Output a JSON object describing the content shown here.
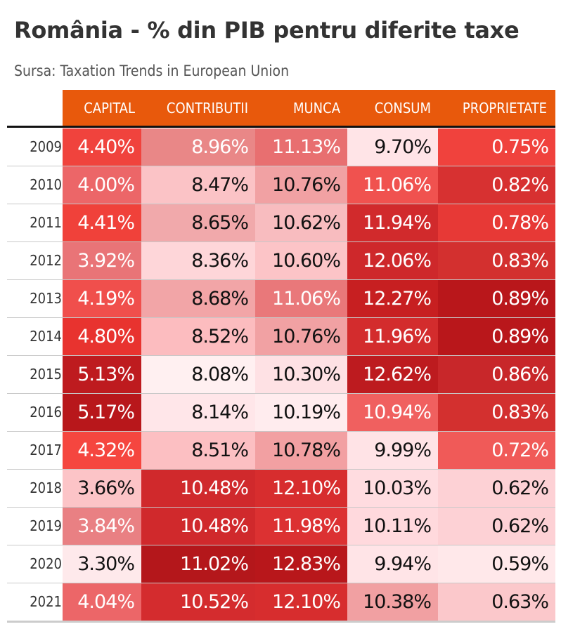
{
  "title": "România - % din PIB pentru diferite taxe",
  "subtitle": "Sursa: Taxation Trends in European Union",
  "chart_data": {
    "type": "table",
    "title": "România - % din PIB pentru diferite taxe",
    "subtitle": "Sursa: Taxation Trends in European Union",
    "columns": [
      "CAPITAL",
      "CONTRIBUTII",
      "MUNCA",
      "CONSUM",
      "PROPRIETATE"
    ],
    "rows": [
      {
        "year": "2009",
        "values": [
          "4.40%",
          "8.96%",
          "11.13%",
          "9.70%",
          "0.75%"
        ],
        "colors": [
          "#f0433d",
          "#e98787",
          "#e86f70",
          "#ffe4e7",
          "#f0423d"
        ],
        "text": [
          "#ffffff",
          "#ffffff",
          "#ffffff",
          "#111111",
          "#ffffff"
        ]
      },
      {
        "year": "2010",
        "values": [
          "4.00%",
          "8.47%",
          "10.76%",
          "11.06%",
          "0.82%"
        ],
        "colors": [
          "#ec6668",
          "#fbc3c6",
          "#f1a1a3",
          "#f0524f",
          "#d73131"
        ],
        "text": [
          "#ffffff",
          "#111111",
          "#111111",
          "#ffffff",
          "#ffffff"
        ]
      },
      {
        "year": "2011",
        "values": [
          "4.41%",
          "8.65%",
          "10.62%",
          "11.94%",
          "0.78%"
        ],
        "colors": [
          "#f0413a",
          "#f1a9ab",
          "#f8bcbf",
          "#d12a2c",
          "#e73936"
        ],
        "text": [
          "#ffffff",
          "#111111",
          "#111111",
          "#ffffff",
          "#ffffff"
        ]
      },
      {
        "year": "2012",
        "values": [
          "3.92%",
          "8.36%",
          "10.60%",
          "12.06%",
          "0.83%"
        ],
        "colors": [
          "#e97477",
          "#fed6d9",
          "#fcc4c7",
          "#ce282b",
          "#d3302f"
        ],
        "text": [
          "#ffffff",
          "#111111",
          "#111111",
          "#ffffff",
          "#ffffff"
        ]
      },
      {
        "year": "2013",
        "values": [
          "4.19%",
          "8.68%",
          "11.06%",
          "12.27%",
          "0.89%"
        ],
        "colors": [
          "#f04f4c",
          "#f2a5a7",
          "#e9787a",
          "#c71f21",
          "#b9171b"
        ],
        "text": [
          "#ffffff",
          "#111111",
          "#ffffff",
          "#ffffff",
          "#ffffff"
        ]
      },
      {
        "year": "2014",
        "values": [
          "4.80%",
          "8.52%",
          "10.76%",
          "11.96%",
          "0.89%"
        ],
        "colors": [
          "#e8332f",
          "#fcbcbf",
          "#f1a1a3",
          "#d32c2d",
          "#b9171b"
        ],
        "text": [
          "#ffffff",
          "#111111",
          "#111111",
          "#ffffff",
          "#ffffff"
        ]
      },
      {
        "year": "2015",
        "values": [
          "5.13%",
          "8.08%",
          "10.30%",
          "12.62%",
          "0.86%"
        ],
        "colors": [
          "#be1b1f",
          "#fff0f1",
          "#fee1e4",
          "#bd1b1f",
          "#c8272a"
        ],
        "text": [
          "#ffffff",
          "#111111",
          "#111111",
          "#ffffff",
          "#ffffff"
        ]
      },
      {
        "year": "2016",
        "values": [
          "5.17%",
          "8.14%",
          "10.19%",
          "10.94%",
          "0.83%"
        ],
        "colors": [
          "#b8171b",
          "#ffe6e9",
          "#ffecee",
          "#f0605f",
          "#d3302f"
        ],
        "text": [
          "#ffffff",
          "#111111",
          "#111111",
          "#ffffff",
          "#ffffff"
        ]
      },
      {
        "year": "2017",
        "values": [
          "4.32%",
          "8.51%",
          "10.78%",
          "9.99%",
          "0.72%"
        ],
        "colors": [
          "#f5463f",
          "#fcbfc2",
          "#f2a0a2",
          "#ffe3e6",
          "#f05a58"
        ],
        "text": [
          "#ffffff",
          "#111111",
          "#111111",
          "#111111",
          "#ffffff"
        ]
      },
      {
        "year": "2018",
        "values": [
          "3.66%",
          "10.48%",
          "12.10%",
          "10.03%",
          "0.62%"
        ],
        "colors": [
          "#fcc4c7",
          "#d0292c",
          "#d72d2e",
          "#ffdce0",
          "#fdd1d5"
        ],
        "text": [
          "#111111",
          "#ffffff",
          "#ffffff",
          "#111111",
          "#111111"
        ]
      },
      {
        "year": "2019",
        "values": [
          "3.84%",
          "10.48%",
          "11.98%",
          "10.11%",
          "0.62%"
        ],
        "colors": [
          "#e98083",
          "#d0292c",
          "#dc3132",
          "#ffd9dd",
          "#fdd1d5"
        ],
        "text": [
          "#ffffff",
          "#ffffff",
          "#ffffff",
          "#111111",
          "#111111"
        ]
      },
      {
        "year": "2020",
        "values": [
          "3.30%",
          "11.02%",
          "12.83%",
          "9.94%",
          "0.59%"
        ],
        "colors": [
          "#fee9eb",
          "#b4171b",
          "#b8171b",
          "#ffe4e7",
          "#ffe8ea"
        ],
        "text": [
          "#111111",
          "#ffffff",
          "#ffffff",
          "#111111",
          "#111111"
        ]
      },
      {
        "year": "2021",
        "values": [
          "4.04%",
          "10.52%",
          "12.10%",
          "10.38%",
          "0.63%"
        ],
        "colors": [
          "#ec6668",
          "#d42c2e",
          "#d72d2e",
          "#f1a0a2",
          "#fbc8cb"
        ],
        "text": [
          "#ffffff",
          "#ffffff",
          "#ffffff",
          "#111111",
          "#111111"
        ]
      }
    ]
  }
}
